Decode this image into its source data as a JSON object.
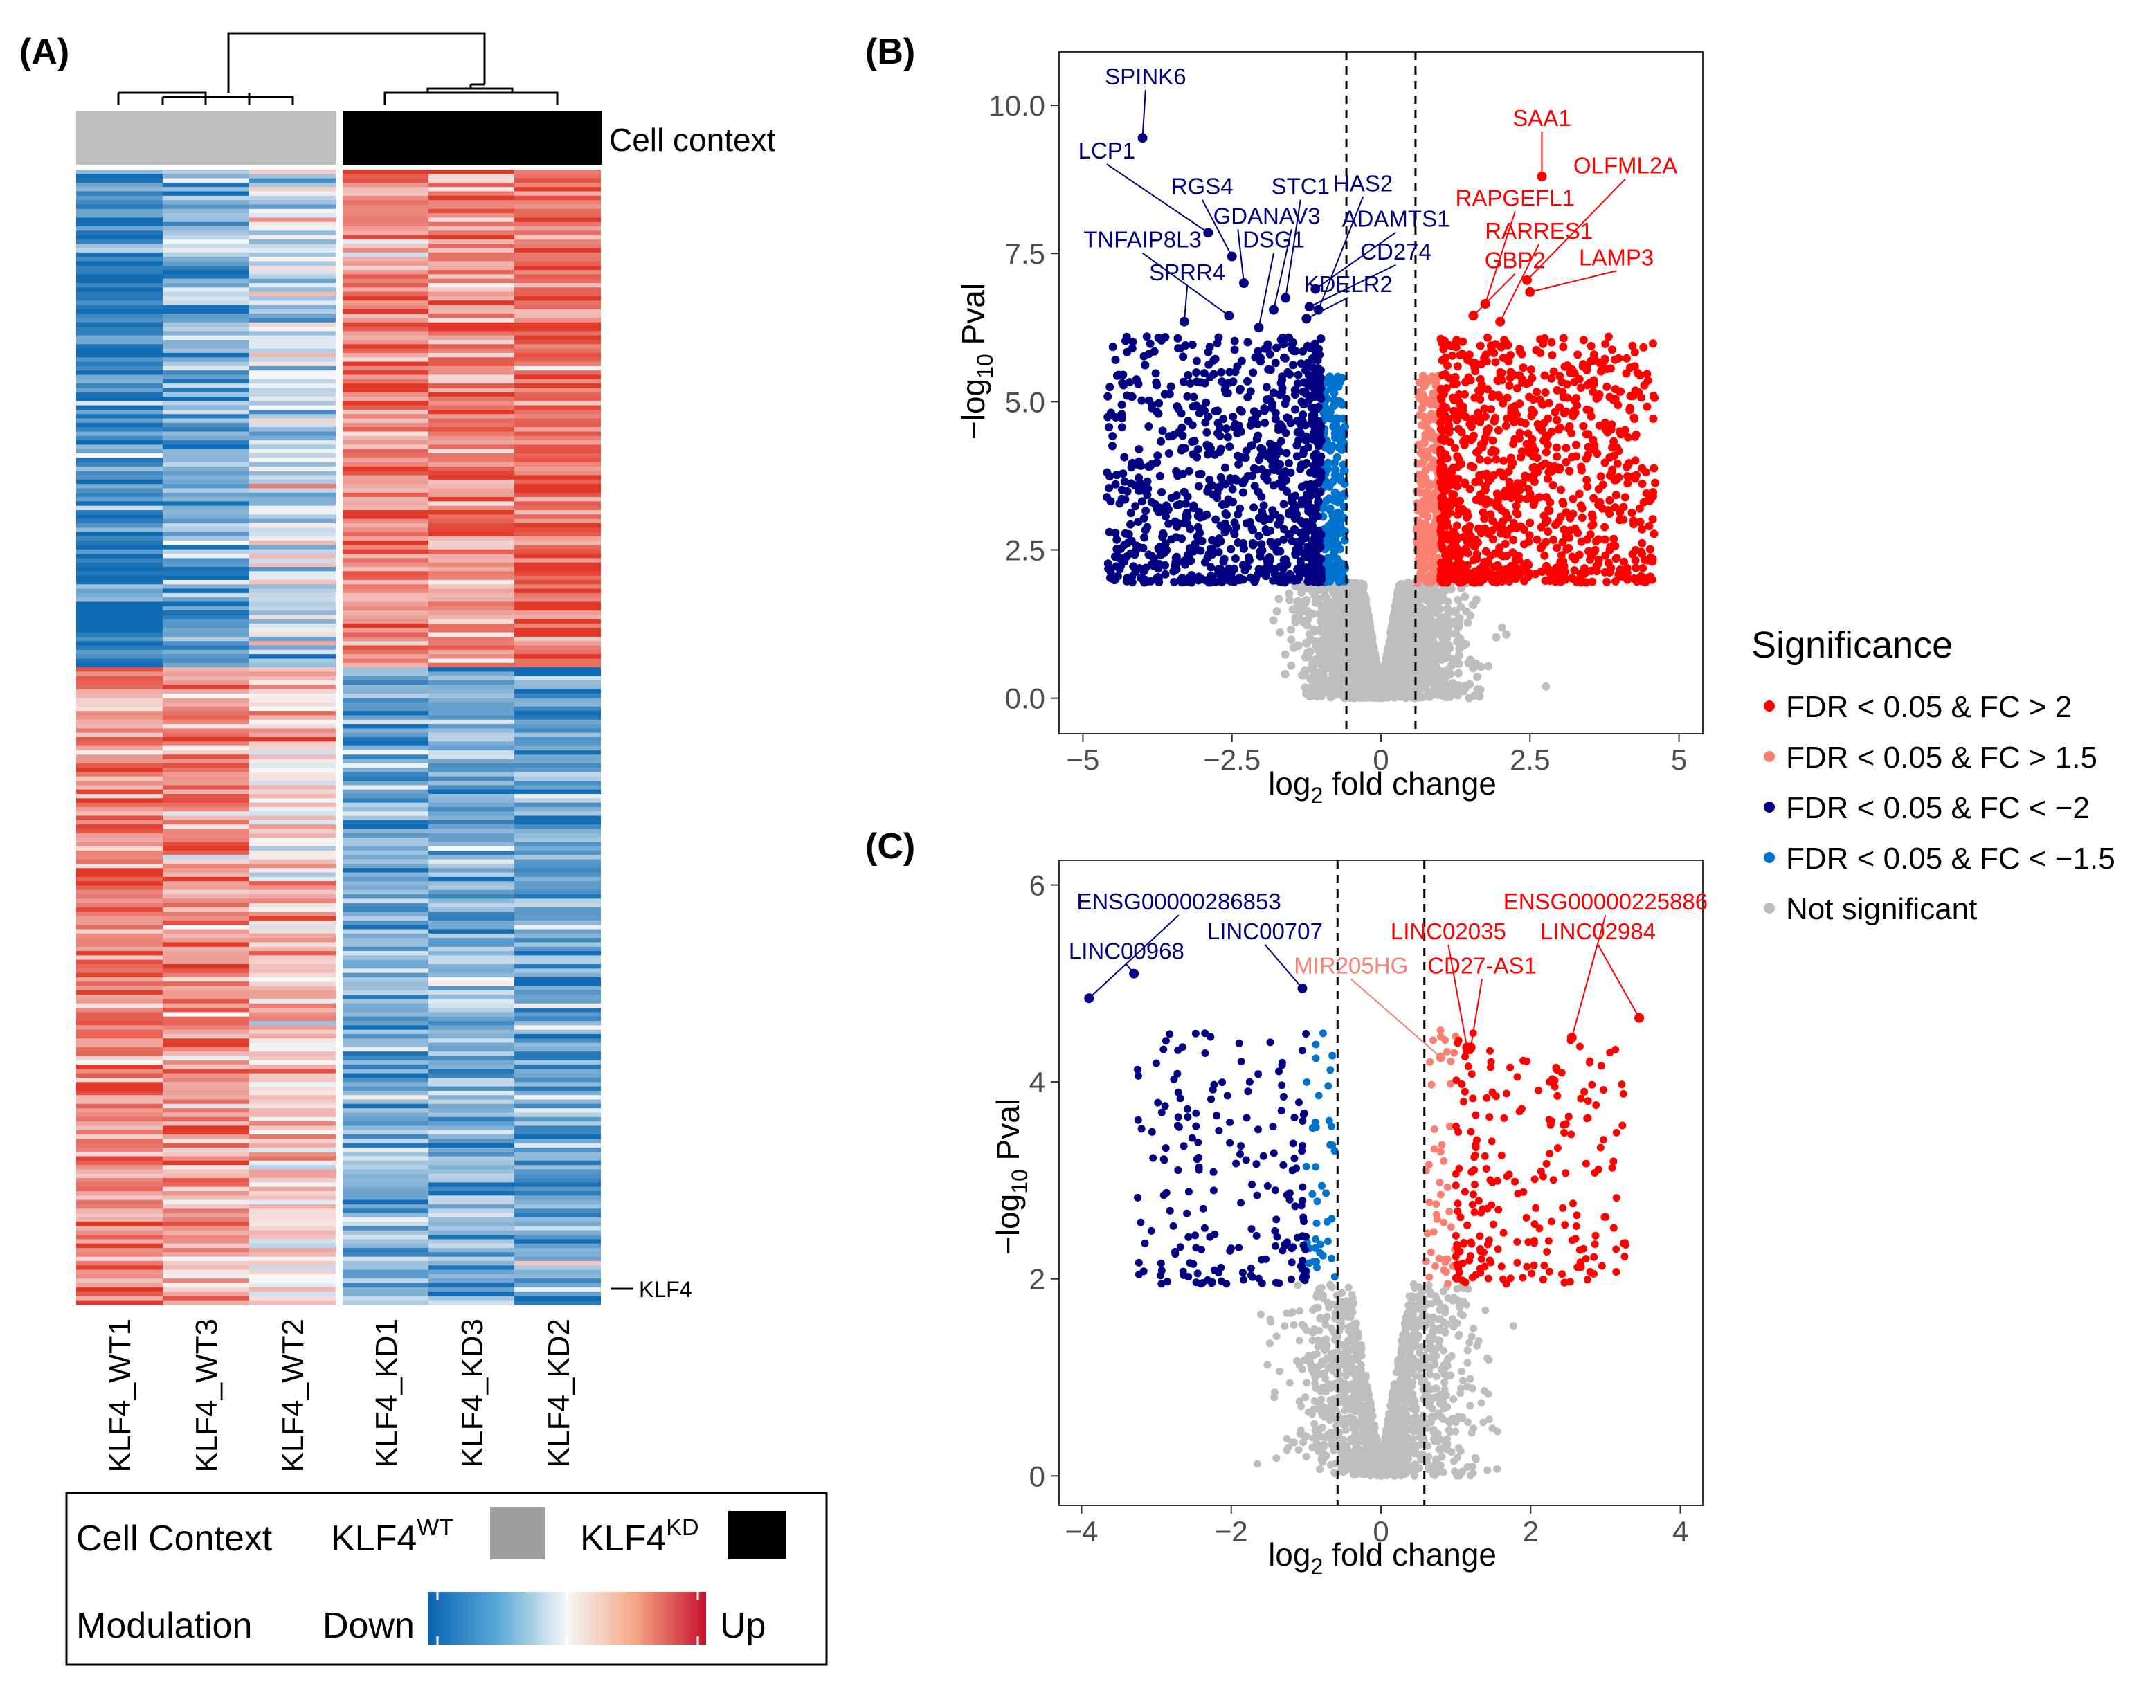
{
  "colors": {
    "up": "#ff0000",
    "up_light": "#fa8072",
    "down": "#000080",
    "down_light": "#0073cf",
    "ns": "#bebebe",
    "wt": "#bebebe",
    "kd": "#000000",
    "heat_low": "#1f78b4",
    "heat_mid": "#f7f7f7",
    "heat_high": "#ef3b2c"
  },
  "panel_a": {
    "label": "(A)",
    "annotation_label": "Cell context",
    "samples": [
      "KLF4_WT1",
      "KLF4_WT3",
      "KLF4_WT2",
      "KLF4_KD1",
      "KLF4_KD3",
      "KLF4_KD2"
    ],
    "marked_gene": "KLF4",
    "legend": {
      "context_title": "Cell Context",
      "wt_label": "KLF4",
      "wt_sup": "WT",
      "kd_label": "KLF4",
      "kd_sup": "KD",
      "modulation_title": "Modulation",
      "down_label": "Down",
      "up_label": "Up"
    }
  },
  "significance_legend": {
    "title": "Significance",
    "items": [
      {
        "label": "FDR < 0.05 & FC > 2",
        "color": "#ff0000"
      },
      {
        "label": "FDR < 0.05 & FC > 1.5",
        "color": "#fa8072"
      },
      {
        "label": "FDR < 0.05 & FC < −2",
        "color": "#000080"
      },
      {
        "label": "FDR < 0.05 & FC < −1.5",
        "color": "#0073cf"
      },
      {
        "label": "Not significant",
        "color": "#bebebe"
      }
    ]
  },
  "chart_data": [
    {
      "id": "B",
      "type": "scatter",
      "panel_label": "(B)",
      "xlabel": "log2 fold change",
      "ylabel": "−log10 Pval",
      "xlim": [
        -5.4,
        5.4
      ],
      "ylim": [
        -0.6,
        10.9
      ],
      "xticks": [
        -5,
        -2.5,
        0,
        2.5,
        5
      ],
      "xtick_labels": [
        "−5",
        "−2.5",
        "0",
        "2.5",
        "5"
      ],
      "yticks": [
        0,
        2.5,
        5,
        7.5,
        10
      ],
      "ytick_labels": [
        "0.0",
        "2.5",
        "5.0",
        "7.5",
        "10.0"
      ],
      "fc_threshold_lines": [
        -0.58,
        0.58
      ],
      "sig_threshold_y": 1.95,
      "labels": [
        {
          "text": "SPINK6",
          "x": -4.0,
          "y": 9.45,
          "lx": -3.95,
          "ly": 10.35,
          "color": "#000080"
        },
        {
          "text": "LCP1",
          "x": -2.9,
          "y": 7.85,
          "lx": -4.6,
          "ly": 9.1,
          "color": "#000080"
        },
        {
          "text": "RGS4",
          "x": -2.5,
          "y": 7.45,
          "lx": -3.0,
          "ly": 8.5,
          "color": "#000080"
        },
        {
          "text": "GDA",
          "x": -2.3,
          "y": 7.0,
          "lx": -2.4,
          "ly": 8.0,
          "color": "#000080"
        },
        {
          "text": "TNFAIP8L3",
          "x": -2.55,
          "y": 6.45,
          "lx": -4.0,
          "ly": 7.6,
          "color": "#000080"
        },
        {
          "text": "SPRR4",
          "x": -3.3,
          "y": 6.35,
          "lx": -3.25,
          "ly": 7.05,
          "color": "#000080"
        },
        {
          "text": "STC1",
          "x": -1.6,
          "y": 6.75,
          "lx": -1.35,
          "ly": 8.5,
          "color": "#000080"
        },
        {
          "text": "NAV3",
          "x": -1.8,
          "y": 6.55,
          "lx": -1.5,
          "ly": 8.0,
          "color": "#000080"
        },
        {
          "text": "DSG1",
          "x": -2.05,
          "y": 6.25,
          "lx": -1.8,
          "ly": 7.6,
          "color": "#000080"
        },
        {
          "text": "HAS2",
          "x": -1.05,
          "y": 6.55,
          "lx": -0.3,
          "ly": 8.55,
          "color": "#000080"
        },
        {
          "text": "ADAMTS1",
          "x": -1.1,
          "y": 6.9,
          "lx": 0.25,
          "ly": 7.95,
          "color": "#000080"
        },
        {
          "text": "CD274",
          "x": -1.2,
          "y": 6.6,
          "lx": 0.25,
          "ly": 7.4,
          "color": "#000080"
        },
        {
          "text": "KDELR2",
          "x": -1.25,
          "y": 6.4,
          "lx": -0.55,
          "ly": 6.85,
          "color": "#000080"
        },
        {
          "text": "SAA1",
          "x": 2.7,
          "y": 8.8,
          "lx": 2.7,
          "ly": 9.65,
          "color": "#ff0000"
        },
        {
          "text": "OLFML2A",
          "x": 2.45,
          "y": 7.05,
          "lx": 4.1,
          "ly": 8.85,
          "color": "#ff0000"
        },
        {
          "text": "RAPGEFL1",
          "x": 1.75,
          "y": 6.65,
          "lx": 2.25,
          "ly": 8.3,
          "color": "#ff0000"
        },
        {
          "text": "RARRES1",
          "x": 2.0,
          "y": 6.35,
          "lx": 2.65,
          "ly": 7.75,
          "color": "#ff0000"
        },
        {
          "text": "GBP2",
          "x": 1.55,
          "y": 6.45,
          "lx": 2.25,
          "ly": 7.25,
          "color": "#ff0000"
        },
        {
          "text": "LAMP3",
          "x": 2.5,
          "y": 6.85,
          "lx": 3.95,
          "ly": 7.3,
          "color": "#ff0000"
        }
      ],
      "generated_points": {
        "seed": 11,
        "groups": [
          {
            "name": "ns_core",
            "n": 2400,
            "color": "ns"
          },
          {
            "name": "down_light",
            "n": 210,
            "color": "down_light"
          },
          {
            "name": "up_light",
            "n": 240,
            "color": "up_light"
          },
          {
            "name": "down",
            "n": 950,
            "color": "down"
          },
          {
            "name": "up",
            "n": 1000,
            "color": "up"
          }
        ]
      }
    },
    {
      "id": "C",
      "type": "scatter",
      "panel_label": "(C)",
      "xlabel": "log2 fold change",
      "ylabel": "−log10 Pval",
      "xlim": [
        -4.3,
        4.3
      ],
      "ylim": [
        -0.3,
        6.25
      ],
      "xticks": [
        -4,
        -2,
        0,
        2,
        4
      ],
      "xtick_labels": [
        "−4",
        "−2",
        "0",
        "2",
        "4"
      ],
      "yticks": [
        0,
        2,
        4,
        6
      ],
      "ytick_labels": [
        "0",
        "2",
        "4",
        "6"
      ],
      "fc_threshold_lines": [
        -0.58,
        0.58
      ],
      "sig_threshold_y": 1.95,
      "labels": [
        {
          "text": "ENSG00000286853",
          "x": -3.9,
          "y": 4.85,
          "lx": -2.7,
          "ly": 5.75,
          "color": "#000080"
        },
        {
          "text": "LINC00968",
          "x": -3.3,
          "y": 5.1,
          "lx": -3.4,
          "ly": 5.25,
          "color": "#000080"
        },
        {
          "text": "LINC00707",
          "x": -1.05,
          "y": 4.95,
          "lx": -1.55,
          "ly": 5.45,
          "color": "#000080"
        },
        {
          "text": "MIR205HG",
          "x": 0.8,
          "y": 4.25,
          "lx": -0.4,
          "ly": 5.1,
          "color": "#fa8072"
        },
        {
          "text": "LINC02035",
          "x": 1.15,
          "y": 4.35,
          "lx": 0.9,
          "ly": 5.45,
          "color": "#ff0000"
        },
        {
          "text": "CD27-AS1",
          "x": 1.2,
          "y": 4.35,
          "lx": 1.35,
          "ly": 5.1,
          "color": "#ff0000"
        },
        {
          "text": "ENSG00000225886",
          "x": 2.55,
          "y": 4.45,
          "lx": 3.0,
          "ly": 5.75,
          "color": "#ff0000"
        },
        {
          "text": "LINC02984",
          "x": 3.45,
          "y": 4.65,
          "lx": 2.9,
          "ly": 5.45,
          "color": "#ff0000"
        }
      ],
      "generated_points": {
        "seed": 29,
        "groups": [
          {
            "name": "ns_core",
            "n": 1500,
            "color": "ns"
          },
          {
            "name": "down_light",
            "n": 40,
            "color": "down_light"
          },
          {
            "name": "up_light",
            "n": 45,
            "color": "up_light"
          },
          {
            "name": "down",
            "n": 190,
            "color": "down"
          },
          {
            "name": "up",
            "n": 220,
            "color": "up"
          }
        ]
      }
    }
  ]
}
